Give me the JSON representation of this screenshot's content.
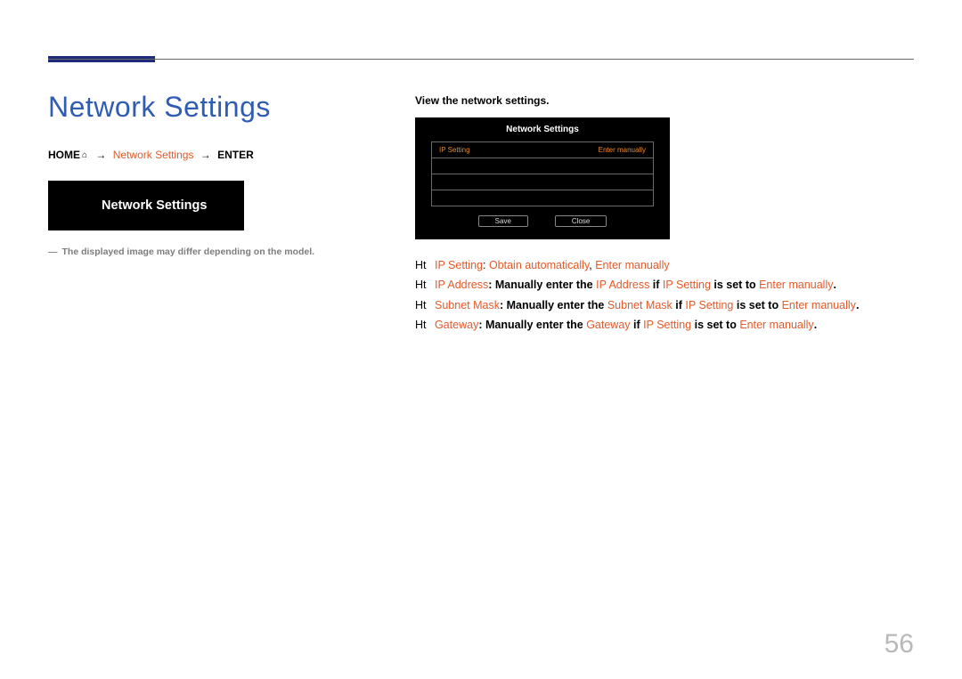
{
  "colors": {
    "accent": "#1e2a7a",
    "title": "#2f5db3",
    "highlight": "#e45a2a",
    "osd_highlight": "#e68a2e",
    "muted": "#7d7d7d",
    "page_no": "#b8b8b8"
  },
  "page_number": "56",
  "title": "Network Settings",
  "breadcrumb": {
    "home": "HOME",
    "item": "Network Settings",
    "enter": "ENTER",
    "sep": "→"
  },
  "tile_label": "Network Settings",
  "note": "The displayed image may differ depending on the model.",
  "note_dash": "―",
  "instruction": "View the network settings.",
  "osd": {
    "title": "Network Settings",
    "rows": [
      {
        "left": "IP Setting",
        "right": "Enter manually"
      },
      {
        "left": "",
        "right": ""
      },
      {
        "left": "",
        "right": ""
      },
      {
        "left": "",
        "right": ""
      }
    ],
    "save": "Save",
    "close": "Close"
  },
  "bullets": {
    "prefix": "Ht",
    "items": [
      {
        "parts": [
          {
            "text": "IP Setting",
            "h": true
          },
          {
            "text": ": "
          },
          {
            "text": "Obtain automatically",
            "h": true
          },
          {
            "text": ", "
          },
          {
            "text": "Enter manually",
            "h": true
          }
        ]
      },
      {
        "parts": [
          {
            "text": "IP Address",
            "h": true
          },
          {
            "text": ": Manually enter the ",
            "b": true
          },
          {
            "text": "IP Address",
            "h": true
          },
          {
            "text": " if ",
            "b": true
          },
          {
            "text": "IP Setting",
            "h": true
          },
          {
            "text": " is set to ",
            "b": true
          },
          {
            "text": "Enter manually",
            "h": true
          },
          {
            "text": ".",
            "b": true
          }
        ]
      },
      {
        "parts": [
          {
            "text": "Subnet Mask",
            "h": true
          },
          {
            "text": ": Manually enter the ",
            "b": true
          },
          {
            "text": "Subnet Mask",
            "h": true
          },
          {
            "text": " if ",
            "b": true
          },
          {
            "text": "IP Setting",
            "h": true
          },
          {
            "text": " is set to ",
            "b": true
          },
          {
            "text": "Enter manually",
            "h": true
          },
          {
            "text": ".",
            "b": true
          }
        ]
      },
      {
        "parts": [
          {
            "text": "Gateway",
            "h": true
          },
          {
            "text": ": Manually enter the ",
            "b": true
          },
          {
            "text": "Gateway",
            "h": true
          },
          {
            "text": " if ",
            "b": true
          },
          {
            "text": "IP Setting",
            "h": true
          },
          {
            "text": " is set to ",
            "b": true
          },
          {
            "text": "Enter manually",
            "h": true
          },
          {
            "text": ".",
            "b": true
          }
        ]
      }
    ]
  }
}
